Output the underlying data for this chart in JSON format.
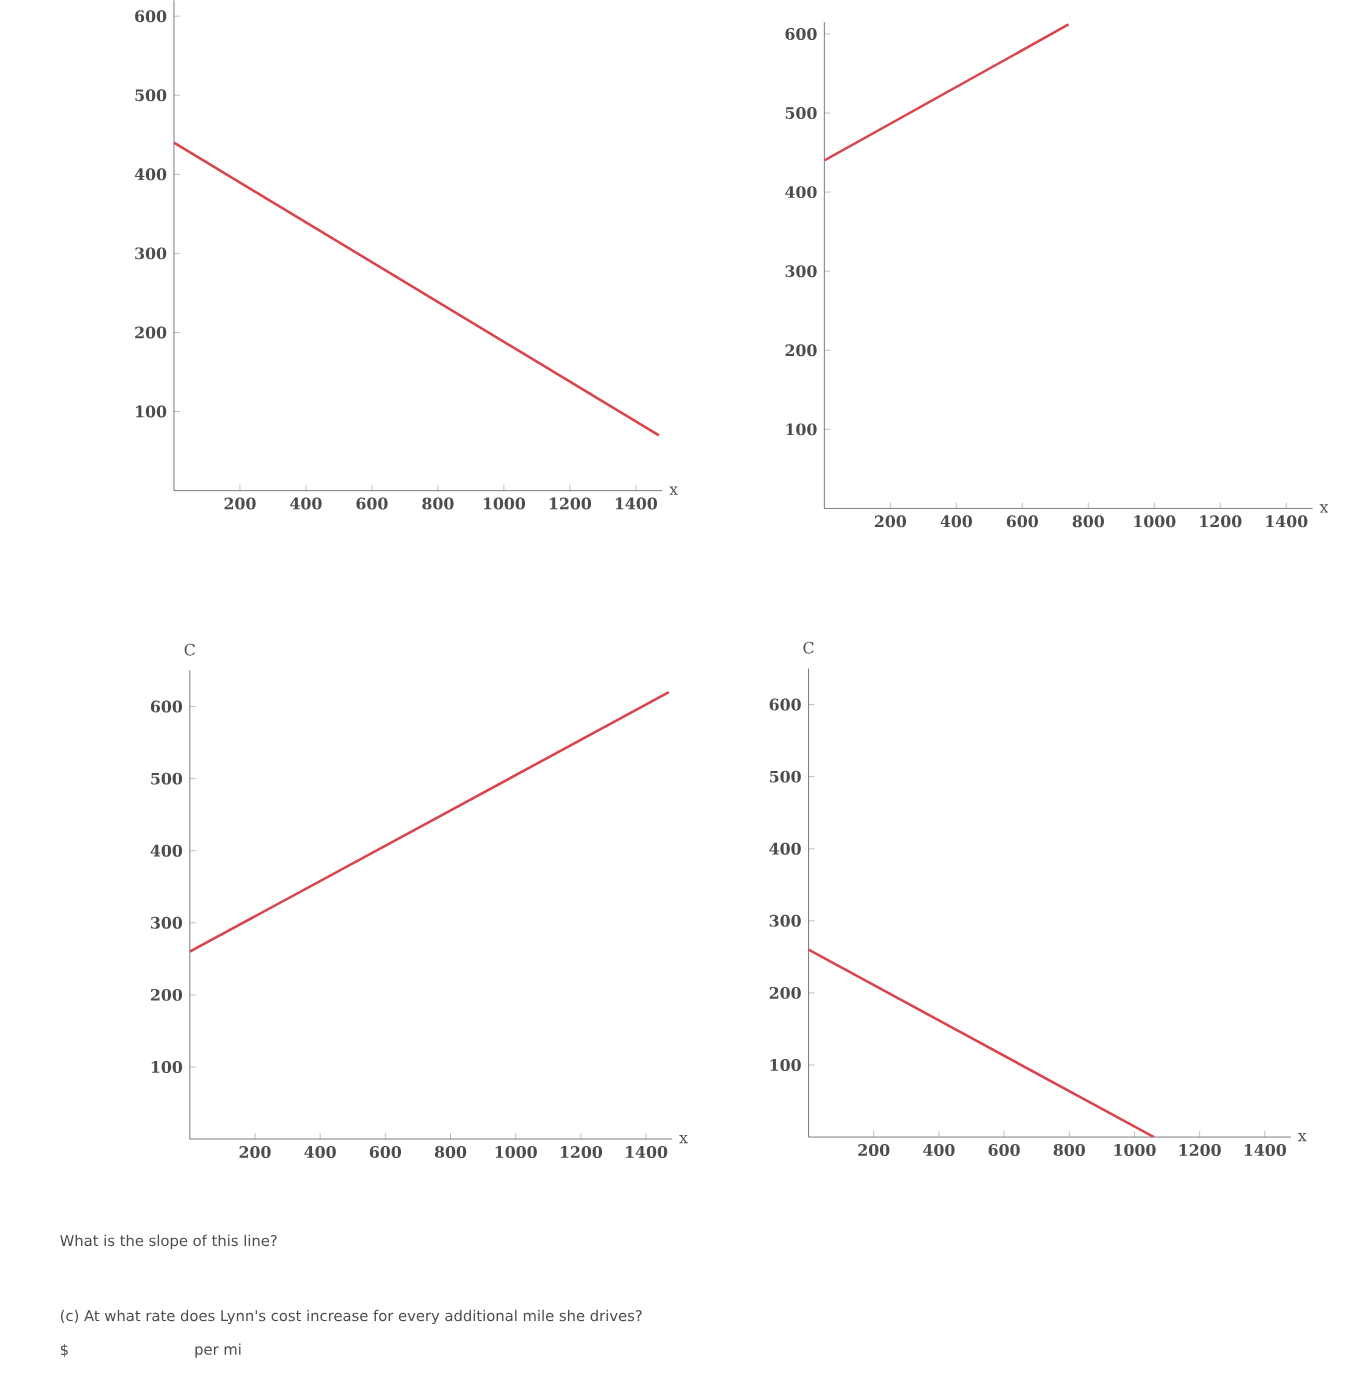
{
  "chart_data": [
    {
      "type": "line",
      "xlabel": "x",
      "x": [
        0,
        1470
      ],
      "values": [
        440,
        70
      ],
      "color": "#d9454a",
      "xlim": [
        0,
        1480
      ],
      "ylim": [
        0,
        620
      ],
      "xticks": [
        200,
        400,
        600,
        800,
        1000,
        1200,
        1400
      ],
      "yticks": [
        100,
        200,
        300,
        400,
        500,
        600
      ]
    },
    {
      "type": "line",
      "xlabel": "x",
      "x": [
        0,
        740
      ],
      "values": [
        440,
        612
      ],
      "color": "#d9454a",
      "xlim": [
        0,
        1480
      ],
      "ylim": [
        0,
        615
      ],
      "xticks": [
        200,
        400,
        600,
        800,
        1000,
        1200,
        1400
      ],
      "yticks": [
        100,
        200,
        300,
        400,
        500,
        600
      ]
    },
    {
      "type": "line",
      "xlabel": "x",
      "ylabel": "C",
      "x": [
        0,
        1470
      ],
      "values": [
        260,
        620
      ],
      "color": "#d9454a",
      "xlim": [
        0,
        1480
      ],
      "ylim": [
        0,
        650
      ],
      "xticks": [
        200,
        400,
        600,
        800,
        1000,
        1200,
        1400
      ],
      "yticks": [
        100,
        200,
        300,
        400,
        500,
        600
      ],
      "annotations": [
        "What is the slope of this line?"
      ]
    },
    {
      "type": "line",
      "xlabel": "x",
      "ylabel": "C",
      "x": [
        0,
        1060
      ],
      "values": [
        260,
        0
      ],
      "color": "#d9454a",
      "xlim": [
        0,
        1480
      ],
      "ylim": [
        0,
        650
      ],
      "xticks": [
        200,
        400,
        600,
        800,
        1000,
        1200,
        1400
      ],
      "yticks": [
        100,
        200,
        300,
        400,
        500,
        600
      ],
      "annotations": [
        "(c) At what rate does Lynn's cost increase for every additional mile she drives?",
        "$",
        "per mi"
      ]
    }
  ]
}
